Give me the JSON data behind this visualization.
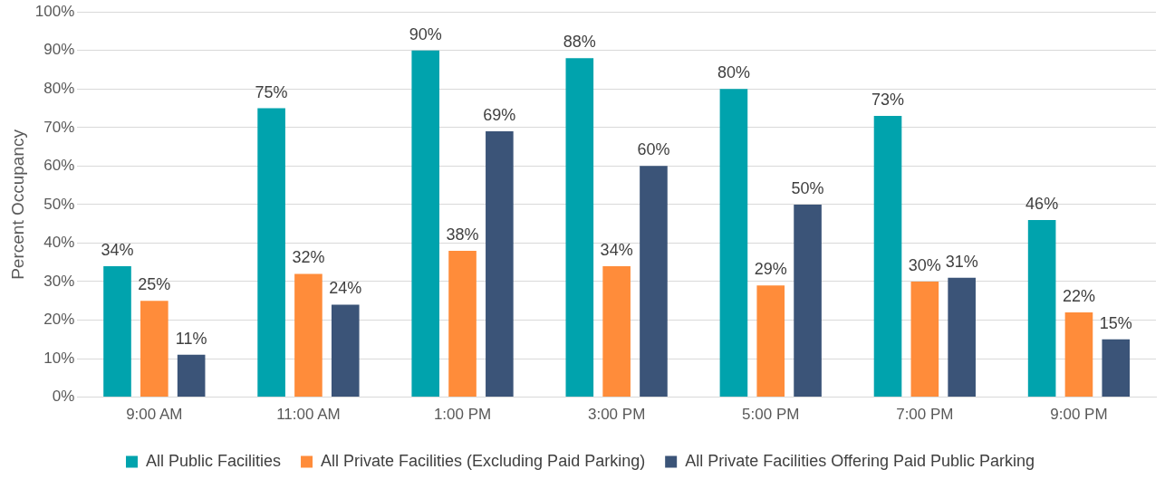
{
  "chart_data": {
    "type": "bar",
    "ylabel": "Percent Occupancy",
    "categories": [
      "9:00 AM",
      "11:00 AM",
      "1:00 PM",
      "3:00 PM",
      "5:00 PM",
      "7:00 PM",
      "9:00 PM"
    ],
    "series": [
      {
        "name": "All Public Facilities",
        "color": "#00a3ad",
        "values": [
          34,
          75,
          90,
          88,
          80,
          73,
          46
        ],
        "value_labels": [
          "34%",
          "75%",
          "90%",
          "88%",
          "80%",
          "73%",
          "46%"
        ]
      },
      {
        "name": "All Private Facilities (Excluding Paid Parking)",
        "color": "#ff8c3a",
        "values": [
          25,
          32,
          38,
          34,
          29,
          30,
          22
        ],
        "value_labels": [
          "25%",
          "32%",
          "38%",
          "34%",
          "29%",
          "30%",
          "22%"
        ]
      },
      {
        "name": "All Private Facilities Offering Paid Public Parking",
        "color": "#3b5478",
        "values": [
          11,
          24,
          69,
          60,
          50,
          31,
          15
        ],
        "value_labels": [
          "11%",
          "24%",
          "69%",
          "60%",
          "50%",
          "31%",
          "15%"
        ]
      }
    ],
    "ylim": [
      0,
      100
    ],
    "yticks": [
      {
        "value": 0,
        "label": "0%"
      },
      {
        "value": 10,
        "label": "10%"
      },
      {
        "value": 20,
        "label": "20%"
      },
      {
        "value": 30,
        "label": "30%"
      },
      {
        "value": 40,
        "label": "40%"
      },
      {
        "value": 50,
        "label": "50%"
      },
      {
        "value": 60,
        "label": "60%"
      },
      {
        "value": 70,
        "label": "70%"
      },
      {
        "value": 80,
        "label": "80%"
      },
      {
        "value": 90,
        "label": "90%"
      },
      {
        "value": 100,
        "label": "100%"
      }
    ],
    "grid": "y",
    "legend": "bottom"
  }
}
